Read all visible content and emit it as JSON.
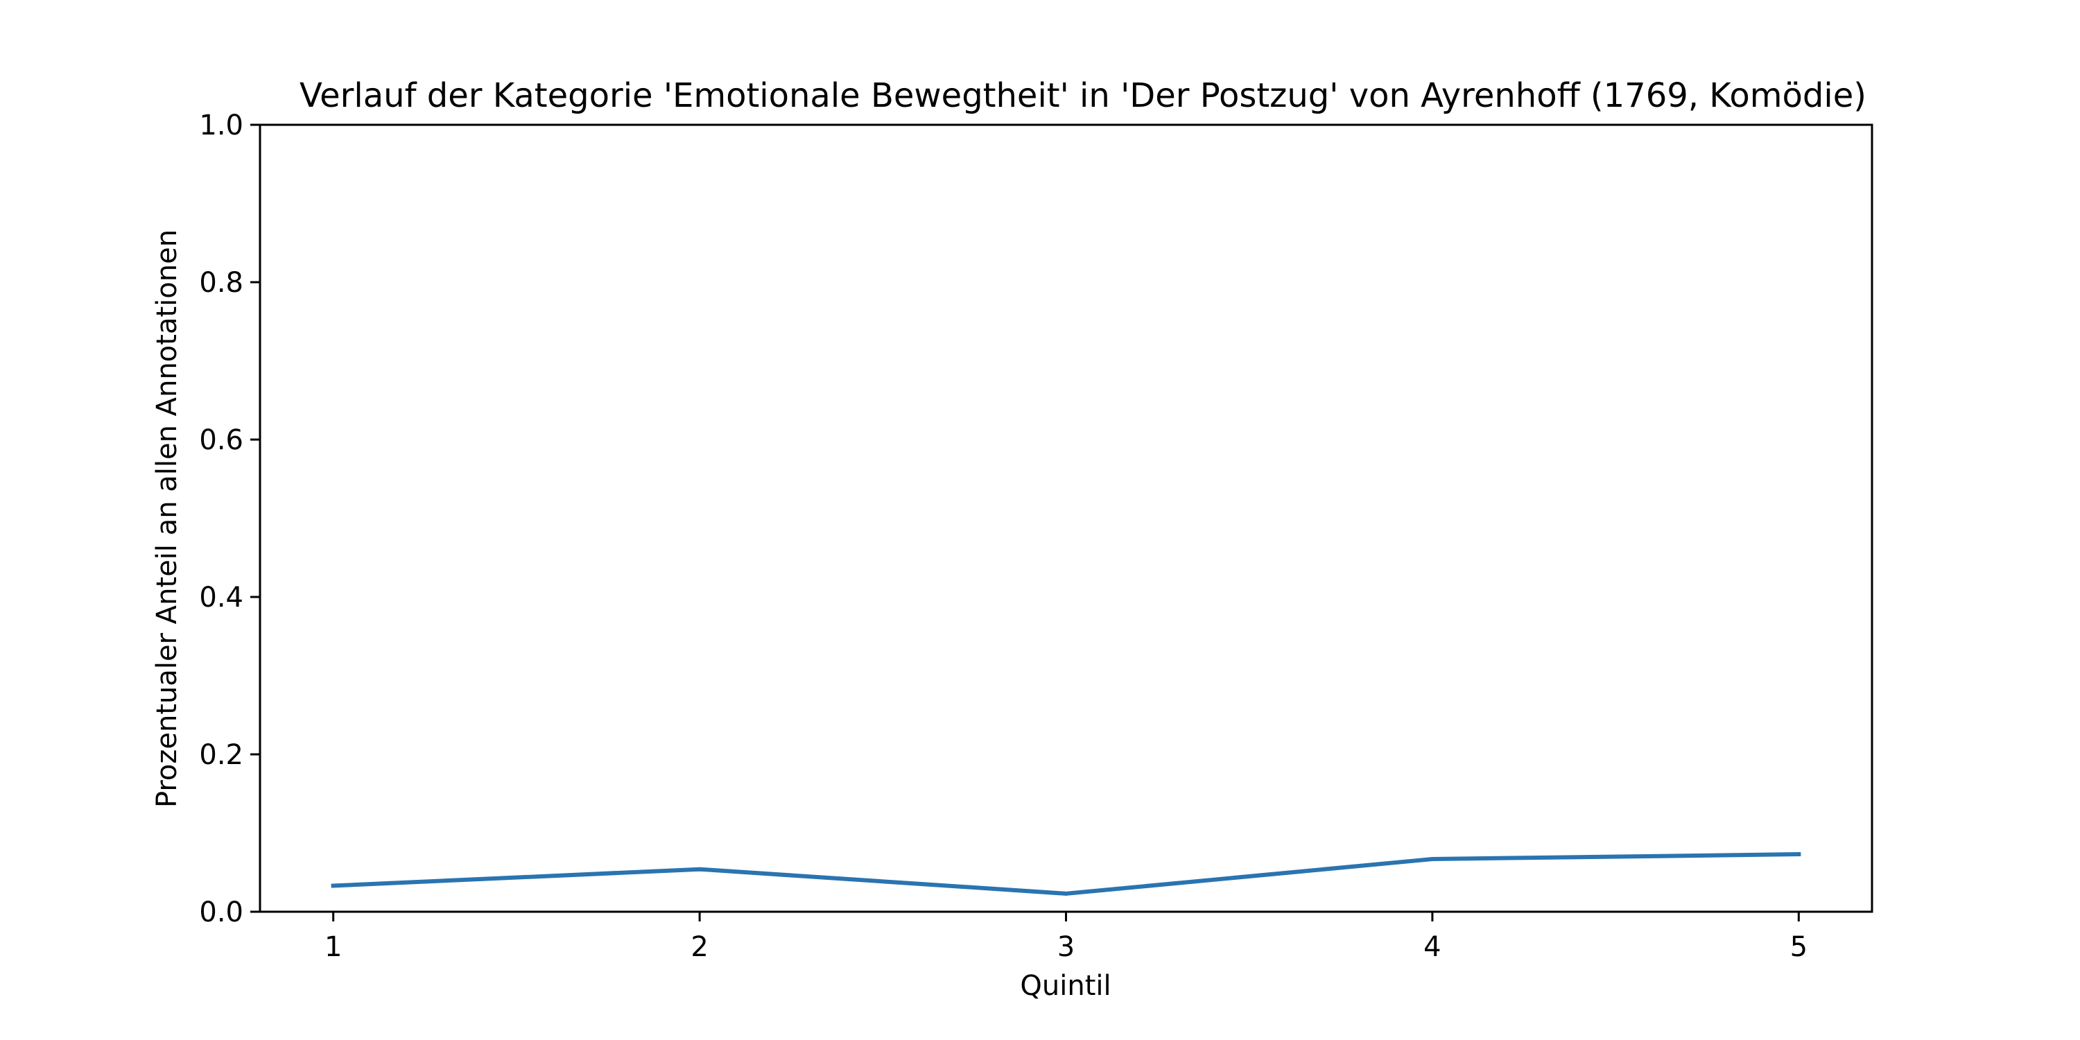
{
  "chart_data": {
    "type": "line",
    "title": "Verlauf der Kategorie 'Emotionale Bewegtheit' in 'Der Postzug' von Ayrenhoff (1769, Komödie)",
    "xlabel": "Quintil",
    "ylabel": "Prozentualer Anteil an allen Annotationen",
    "x": [
      1,
      2,
      3,
      4,
      5
    ],
    "x_tick_labels": [
      "1",
      "2",
      "3",
      "4",
      "5"
    ],
    "y_ticks": [
      0.0,
      0.2,
      0.4,
      0.6,
      0.8,
      1.0
    ],
    "y_tick_labels": [
      "0.0",
      "0.2",
      "0.4",
      "0.6",
      "0.8",
      "1.0"
    ],
    "xlim": [
      0.8,
      5.2
    ],
    "ylim": [
      0.0,
      1.0
    ],
    "grid": false,
    "series": [
      {
        "values": [
          0.033,
          0.054,
          0.023,
          0.067,
          0.073
        ],
        "color": "#2a74b0"
      }
    ]
  }
}
